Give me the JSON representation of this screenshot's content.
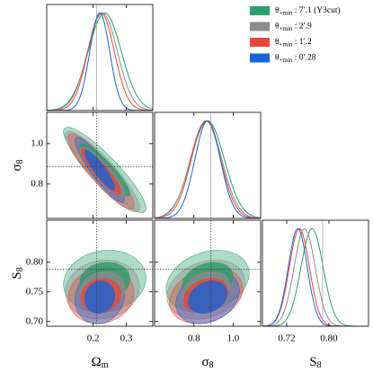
{
  "chart_data": {
    "type": "corner",
    "parameters": [
      {
        "symbol": "Ω",
        "subscript": "m",
        "xlim": [
          0.06,
          0.38
        ],
        "xticks": [
          0.2,
          0.3
        ],
        "fiducial": 0.21
      },
      {
        "symbol": "σ",
        "subscript": "8",
        "xlim": [
          0.6,
          1.14
        ],
        "xticks": [
          0.8,
          {
            "value": 1.0,
            "label": "1.0"
          }
        ],
        "ylim": [
          0.63,
          1.155
        ],
        "yticks": [
          0.8,
          {
            "value": 1.0,
            "label": "1.0"
          }
        ],
        "fiducial": 0.887
      },
      {
        "symbol": "S",
        "subscript": "8",
        "xlim": [
          0.674,
          0.875
        ],
        "xticks": [
          0.72,
          {
            "value": 0.8,
            "label": "0.80"
          }
        ],
        "ylim": [
          0.692,
          0.871
        ],
        "yticks": [
          {
            "value": 0.7,
            "label": "0.70"
          },
          0.75,
          {
            "value": 0.8,
            "label": "0.80"
          }
        ],
        "fiducial": 0.788
      }
    ],
    "series": [
      {
        "name": [
          "θ",
          "+min",
          " : 7′.1 (Y3cut)"
        ],
        "color": "#2a9d6e",
        "mean": [
          0.235,
          0.87,
          0.768
        ],
        "sd": [
          0.05,
          0.085,
          0.021
        ],
        "corr": [
          -0.9,
          0.1,
          0.25
        ]
      },
      {
        "name": [
          "θ",
          "+min",
          " : 2′.9"
        ],
        "color": "#8c8c8c",
        "mean": [
          0.228,
          0.862,
          0.754
        ],
        "sd": [
          0.045,
          0.08,
          0.02
        ],
        "corr": [
          -0.9,
          0.1,
          0.25
        ]
      },
      {
        "name": [
          "θ",
          "+min",
          " : 1′.2"
        ],
        "color": "#e8463a",
        "mean": [
          0.224,
          0.862,
          0.744
        ],
        "sd": [
          0.04,
          0.075,
          0.019
        ],
        "corr": [
          -0.9,
          0.1,
          0.25
        ]
      },
      {
        "name": [
          "θ",
          "+min",
          " : 0′.28"
        ],
        "color": "#1565d8",
        "mean": [
          0.22,
          0.87,
          0.741
        ],
        "sd": [
          0.03,
          0.065,
          0.018
        ],
        "corr": [
          -0.9,
          0.1,
          0.25
        ]
      }
    ]
  }
}
